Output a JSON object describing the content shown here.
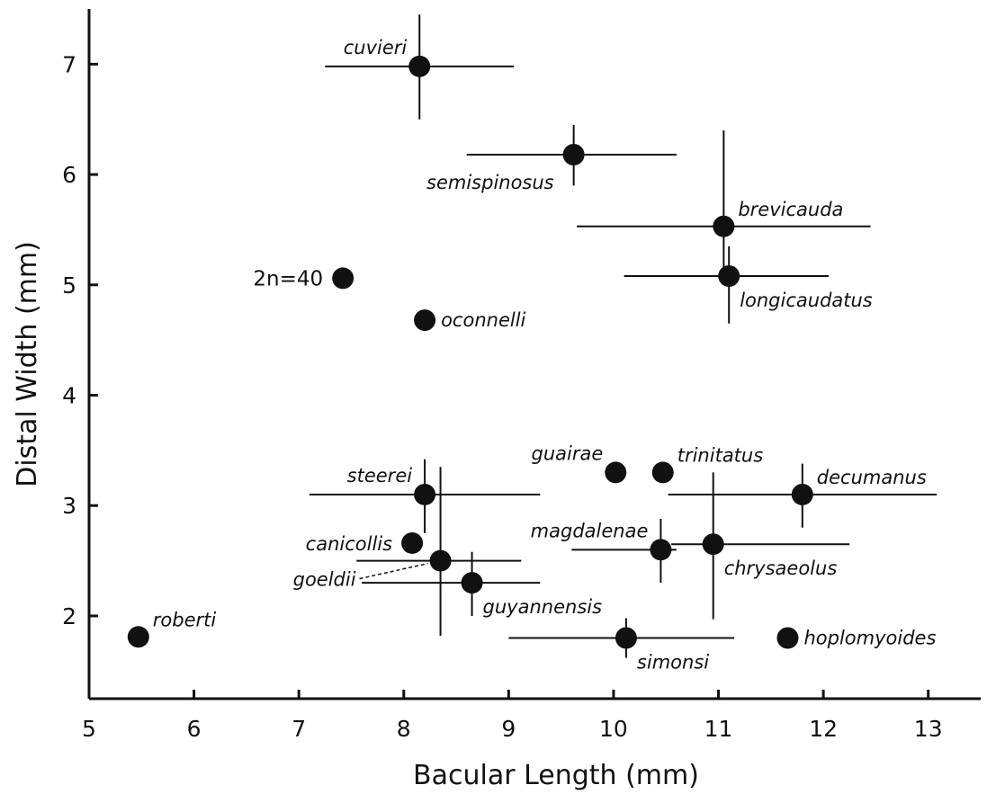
{
  "chart_data": {
    "type": "scatter",
    "title": "",
    "xlabel": "Bacular Length (mm)",
    "ylabel": "Distal Width (mm)",
    "xlim": [
      5,
      13.5
    ],
    "ylim": [
      1.25,
      7.5
    ],
    "xticks": [
      "5",
      "6",
      "7",
      "8",
      "9",
      "10",
      "11",
      "12",
      "13"
    ],
    "yticks": [
      "2",
      "3",
      "4",
      "5",
      "6",
      "7"
    ],
    "grid": false,
    "points": [
      {
        "label": "cuvieri",
        "x": 8.15,
        "y": 6.98,
        "xerr": [
          7.25,
          9.05
        ],
        "yerr": [
          6.5,
          7.45
        ],
        "label_pos": "upper-left"
      },
      {
        "label": "semispinosus",
        "x": 9.62,
        "y": 6.18,
        "xerr": [
          8.6,
          10.6
        ],
        "yerr": [
          5.9,
          6.45
        ],
        "label_pos": "lower-left"
      },
      {
        "label": "brevicauda",
        "x": 11.05,
        "y": 5.53,
        "xerr": [
          9.65,
          12.45
        ],
        "yerr": [
          5.02,
          6.4
        ],
        "label_pos": "upper-right"
      },
      {
        "label": "longicaudatus",
        "x": 11.1,
        "y": 5.08,
        "xerr": [
          10.1,
          12.05
        ],
        "yerr": [
          4.65,
          5.35
        ],
        "label_pos": "lower-right"
      },
      {
        "label": "2n=40",
        "x": 7.42,
        "y": 5.06,
        "label_pos": "left",
        "upright": true
      },
      {
        "label": "oconnelli",
        "x": 8.2,
        "y": 4.68,
        "label_pos": "right"
      },
      {
        "label": "guairae",
        "x": 10.02,
        "y": 3.3,
        "label_pos": "upper-left"
      },
      {
        "label": "trinitatus",
        "x": 10.47,
        "y": 3.3,
        "label_pos": "upper-right"
      },
      {
        "label": "steerei",
        "x": 8.2,
        "y": 3.1,
        "xerr": [
          7.1,
          9.3
        ],
        "yerr": [
          2.75,
          3.42
        ],
        "label_pos": "upper-left"
      },
      {
        "label": "decumanus",
        "x": 11.8,
        "y": 3.1,
        "xerr": [
          10.52,
          13.08
        ],
        "yerr": [
          2.8,
          3.38
        ],
        "label_pos": "upper-right"
      },
      {
        "label": "canicollis",
        "x": 8.08,
        "y": 2.66,
        "label_pos": "left"
      },
      {
        "label": "magdalenae",
        "x": 10.45,
        "y": 2.6,
        "xerr": [
          9.6,
          10.6
        ],
        "yerr": [
          2.3,
          2.88
        ],
        "label_pos": "upper-left"
      },
      {
        "label": "chrysaeolus",
        "x": 10.95,
        "y": 2.65,
        "xerr": [
          10.55,
          12.25
        ],
        "yerr": [
          1.97,
          3.3
        ],
        "label_pos": "lower-right"
      },
      {
        "label": "goeldii",
        "x": 8.35,
        "y": 2.5,
        "xerr": [
          7.55,
          9.12
        ],
        "yerr": [
          1.82,
          3.35
        ],
        "label_pos": "left-leader"
      },
      {
        "label": "guyannensis",
        "x": 8.65,
        "y": 2.3,
        "xerr": [
          7.6,
          9.3
        ],
        "yerr": [
          2.0,
          2.58
        ],
        "label_pos": "lower-right"
      },
      {
        "label": "roberti",
        "x": 5.47,
        "y": 1.81,
        "label_pos": "upper-right"
      },
      {
        "label": "simonsi",
        "x": 10.12,
        "y": 1.8,
        "xerr": [
          9.0,
          11.15
        ],
        "yerr": [
          1.62,
          1.98
        ],
        "label_pos": "lower-right"
      },
      {
        "label": "hoplomyoides",
        "x": 11.66,
        "y": 1.8,
        "label_pos": "right"
      }
    ]
  }
}
